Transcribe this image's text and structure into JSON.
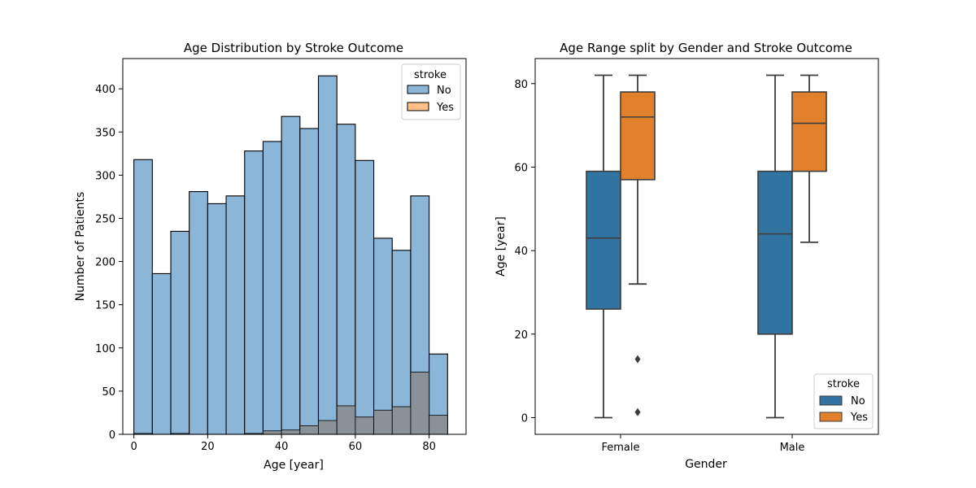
{
  "chart_data": [
    {
      "type": "histogram",
      "title": "Age Distribution by Stroke Outcome",
      "xlabel": "Age [year]",
      "ylabel": "Number of Patients",
      "xlim": [
        -3,
        90
      ],
      "ylim": [
        0,
        435
      ],
      "xticks": [
        0,
        20,
        40,
        60,
        80
      ],
      "yticks": [
        0,
        50,
        100,
        150,
        200,
        250,
        300,
        350,
        400
      ],
      "bin_edges": [
        0,
        5,
        10,
        15,
        20,
        25,
        30,
        35,
        40,
        45,
        50,
        55,
        60,
        65,
        70,
        75,
        80,
        85
      ],
      "legend": {
        "title": "stroke",
        "placement": "top-right"
      },
      "series": [
        {
          "name": "No",
          "color": "#1f77b4",
          "values": [
            318,
            186,
            235,
            281,
            267,
            276,
            328,
            339,
            368,
            354,
            415,
            359,
            317,
            227,
            213,
            276,
            93
          ]
        },
        {
          "name": "Yes",
          "color": "#ff7f0e",
          "values": [
            1,
            0,
            1,
            0,
            0,
            0,
            1,
            4,
            5,
            10,
            16,
            33,
            20,
            28,
            32,
            72,
            22
          ]
        }
      ],
      "colors": {
        "No": "#1f77b4",
        "Yes": "#ff7f0e",
        "overlap": "#8b9199"
      }
    },
    {
      "type": "box",
      "title": "Age Range split by Gender and Stroke Outcome",
      "xlabel": "Gender",
      "ylabel": "Age [year]",
      "ylim": [
        -4,
        86
      ],
      "yticks": [
        0,
        20,
        40,
        60,
        80
      ],
      "categories": [
        "Female",
        "Male"
      ],
      "legend": {
        "title": "stroke",
        "placement": "bottom-right"
      },
      "series": [
        {
          "name": "No",
          "color": "#3274a1",
          "boxes": [
            {
              "min": 0,
              "q1": 26,
              "median": 43,
              "q3": 59,
              "max": 82,
              "outliers": []
            },
            {
              "min": 0,
              "q1": 20,
              "median": 44,
              "q3": 59,
              "max": 82,
              "outliers": []
            }
          ]
        },
        {
          "name": "Yes",
          "color": "#e1812c",
          "boxes": [
            {
              "min": 32,
              "q1": 57,
              "median": 72,
              "q3": 78,
              "max": 82,
              "outliers": [
                14,
                1.3
              ]
            },
            {
              "min": 42,
              "q1": 59,
              "median": 70.5,
              "q3": 78,
              "max": 82,
              "outliers": []
            }
          ]
        }
      ]
    }
  ]
}
